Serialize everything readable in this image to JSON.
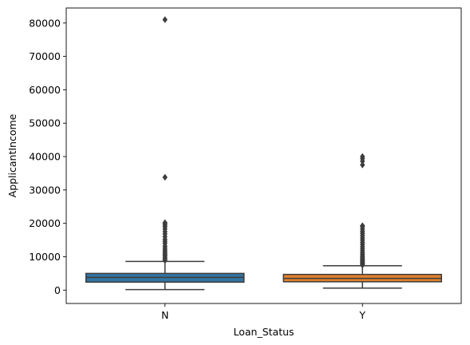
{
  "chart_data": {
    "type": "box",
    "xlabel": "Loan_Status",
    "ylabel": "ApplicantIncome",
    "categories": [
      "N",
      "Y"
    ],
    "ylim": [
      -4000,
      84500
    ],
    "yticks": [
      0,
      10000,
      20000,
      30000,
      40000,
      50000,
      60000,
      70000,
      80000
    ],
    "ytick_labels": [
      "0",
      "10000",
      "20000",
      "30000",
      "40000",
      "50000",
      "60000",
      "70000",
      "80000"
    ],
    "grid": false,
    "series": [
      {
        "category": "N",
        "color": "#3274a1",
        "min": 150,
        "q1": 2400,
        "median": 3800,
        "q3": 5000,
        "max": 8600,
        "outliers": [
          8900,
          9300,
          9700,
          10200,
          10600,
          11000,
          11500,
          12000,
          12600,
          13200,
          14000,
          14600,
          15200,
          16000,
          16800,
          17500,
          18300,
          19000,
          19500,
          20000,
          20200,
          33800,
          81000
        ]
      },
      {
        "category": "Y",
        "color": "#e1812c",
        "min": 600,
        "q1": 2500,
        "median": 3500,
        "q3": 4700,
        "max": 7300,
        "outliers": [
          7500,
          7800,
          8100,
          8400,
          8700,
          9000,
          9400,
          9800,
          10200,
          10700,
          11200,
          11800,
          12400,
          13000,
          13700,
          14300,
          15000,
          15600,
          16300,
          17000,
          17600,
          18300,
          19000,
          19300,
          37500,
          38600,
          39400,
          40000
        ]
      }
    ]
  }
}
